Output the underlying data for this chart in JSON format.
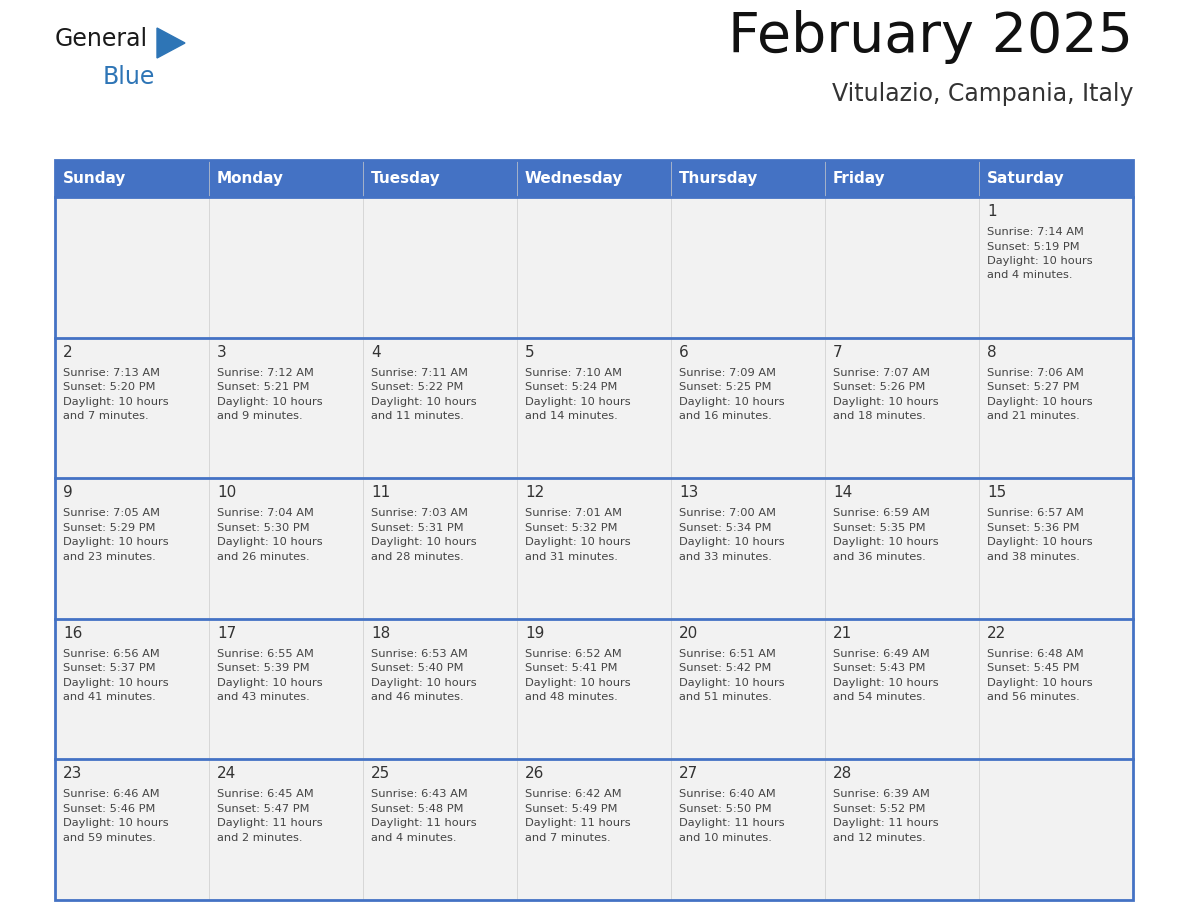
{
  "title": "February 2025",
  "subtitle": "Vitulazio, Campania, Italy",
  "days_of_week": [
    "Sunday",
    "Monday",
    "Tuesday",
    "Wednesday",
    "Thursday",
    "Friday",
    "Saturday"
  ],
  "header_bg": "#4472C4",
  "header_text": "#FFFFFF",
  "cell_bg": "#F2F2F2",
  "row_sep_color": "#4472C4",
  "text_color": "#444444",
  "day_number_color": "#333333",
  "logo_general_color": "#1a1a1a",
  "logo_blue_color": "#2E75B6",
  "calendar_data": [
    [
      null,
      null,
      null,
      null,
      null,
      null,
      {
        "day": 1,
        "sunrise": "7:14 AM",
        "sunset": "5:19 PM",
        "daylight": "10 hours and 4 minutes."
      }
    ],
    [
      {
        "day": 2,
        "sunrise": "7:13 AM",
        "sunset": "5:20 PM",
        "daylight": "10 hours and 7 minutes."
      },
      {
        "day": 3,
        "sunrise": "7:12 AM",
        "sunset": "5:21 PM",
        "daylight": "10 hours and 9 minutes."
      },
      {
        "day": 4,
        "sunrise": "7:11 AM",
        "sunset": "5:22 PM",
        "daylight": "10 hours and 11 minutes."
      },
      {
        "day": 5,
        "sunrise": "7:10 AM",
        "sunset": "5:24 PM",
        "daylight": "10 hours and 14 minutes."
      },
      {
        "day": 6,
        "sunrise": "7:09 AM",
        "sunset": "5:25 PM",
        "daylight": "10 hours and 16 minutes."
      },
      {
        "day": 7,
        "sunrise": "7:07 AM",
        "sunset": "5:26 PM",
        "daylight": "10 hours and 18 minutes."
      },
      {
        "day": 8,
        "sunrise": "7:06 AM",
        "sunset": "5:27 PM",
        "daylight": "10 hours and 21 minutes."
      }
    ],
    [
      {
        "day": 9,
        "sunrise": "7:05 AM",
        "sunset": "5:29 PM",
        "daylight": "10 hours and 23 minutes."
      },
      {
        "day": 10,
        "sunrise": "7:04 AM",
        "sunset": "5:30 PM",
        "daylight": "10 hours and 26 minutes."
      },
      {
        "day": 11,
        "sunrise": "7:03 AM",
        "sunset": "5:31 PM",
        "daylight": "10 hours and 28 minutes."
      },
      {
        "day": 12,
        "sunrise": "7:01 AM",
        "sunset": "5:32 PM",
        "daylight": "10 hours and 31 minutes."
      },
      {
        "day": 13,
        "sunrise": "7:00 AM",
        "sunset": "5:34 PM",
        "daylight": "10 hours and 33 minutes."
      },
      {
        "day": 14,
        "sunrise": "6:59 AM",
        "sunset": "5:35 PM",
        "daylight": "10 hours and 36 minutes."
      },
      {
        "day": 15,
        "sunrise": "6:57 AM",
        "sunset": "5:36 PM",
        "daylight": "10 hours and 38 minutes."
      }
    ],
    [
      {
        "day": 16,
        "sunrise": "6:56 AM",
        "sunset": "5:37 PM",
        "daylight": "10 hours and 41 minutes."
      },
      {
        "day": 17,
        "sunrise": "6:55 AM",
        "sunset": "5:39 PM",
        "daylight": "10 hours and 43 minutes."
      },
      {
        "day": 18,
        "sunrise": "6:53 AM",
        "sunset": "5:40 PM",
        "daylight": "10 hours and 46 minutes."
      },
      {
        "day": 19,
        "sunrise": "6:52 AM",
        "sunset": "5:41 PM",
        "daylight": "10 hours and 48 minutes."
      },
      {
        "day": 20,
        "sunrise": "6:51 AM",
        "sunset": "5:42 PM",
        "daylight": "10 hours and 51 minutes."
      },
      {
        "day": 21,
        "sunrise": "6:49 AM",
        "sunset": "5:43 PM",
        "daylight": "10 hours and 54 minutes."
      },
      {
        "day": 22,
        "sunrise": "6:48 AM",
        "sunset": "5:45 PM",
        "daylight": "10 hours and 56 minutes."
      }
    ],
    [
      {
        "day": 23,
        "sunrise": "6:46 AM",
        "sunset": "5:46 PM",
        "daylight": "10 hours and 59 minutes."
      },
      {
        "day": 24,
        "sunrise": "6:45 AM",
        "sunset": "5:47 PM",
        "daylight": "11 hours and 2 minutes."
      },
      {
        "day": 25,
        "sunrise": "6:43 AM",
        "sunset": "5:48 PM",
        "daylight": "11 hours and 4 minutes."
      },
      {
        "day": 26,
        "sunrise": "6:42 AM",
        "sunset": "5:49 PM",
        "daylight": "11 hours and 7 minutes."
      },
      {
        "day": 27,
        "sunrise": "6:40 AM",
        "sunset": "5:50 PM",
        "daylight": "11 hours and 10 minutes."
      },
      {
        "day": 28,
        "sunrise": "6:39 AM",
        "sunset": "5:52 PM",
        "daylight": "11 hours and 12 minutes."
      },
      null
    ]
  ]
}
